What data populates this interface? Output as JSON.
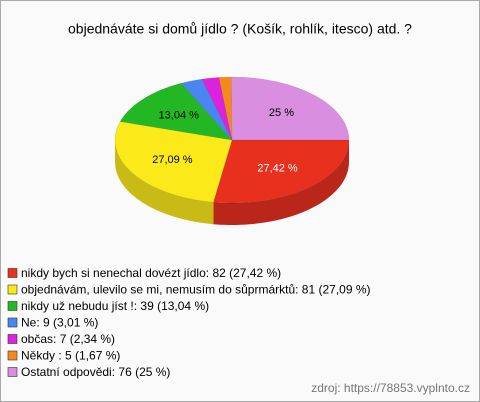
{
  "chart_data": {
    "type": "pie",
    "title": "objednáváte si domů jídlo ? (Košík, rohlík, itesco) atd. ?",
    "categories": [
      "nikdy bych si nenechal dovézt jídlo: 82 (27,42 %)",
      "objednávám, ulevilo se mi, nemusím do sůprmárktů: 81 (27,09 %)",
      "nikdy už nebudu jíst !: 39 (13,04 %)",
      "Ne: 9 (3,01 %)",
      "občas: 7 (2,34 %)",
      "Někdy : 5 (1,67 %)",
      "Ostatní odpovědi: 76 (25 %)"
    ],
    "values": [
      27.42,
      27.09,
      13.04,
      3.01,
      2.34,
      1.67,
      25
    ],
    "value_labels": [
      "27,42 %",
      "27,09 %",
      "13,04 %",
      null,
      null,
      null,
      "25 %"
    ],
    "colors": [
      "#e8301f",
      "#fbe91a",
      "#23b823",
      "#4a86f0",
      "#dd22dd",
      "#f58a1a",
      "#d98ee0"
    ],
    "source": "zdroj: https://78853.vyplnto.cz"
  }
}
